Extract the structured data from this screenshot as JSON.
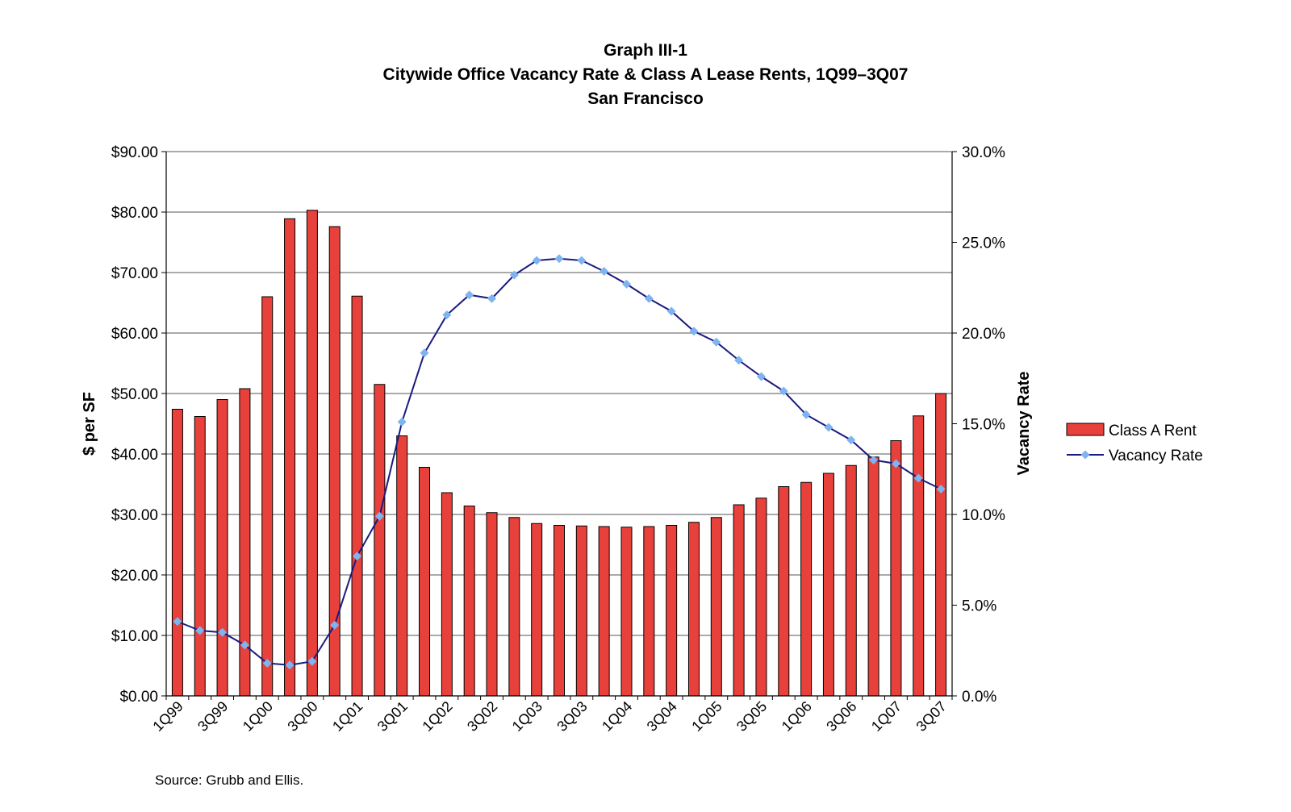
{
  "chart_data": {
    "type": "bar",
    "title": "Graph III-1",
    "subtitle": "Citywide Office Vacancy Rate & Class A Lease Rents, 1Q99–3Q07",
    "subtitle2": "San Francisco",
    "ylabel_left": "$ per SF",
    "ylabel_right": "Vacancy Rate",
    "ylim_left": [
      0,
      90
    ],
    "ylim_right": [
      0,
      30
    ],
    "yticks_left": [
      "$0.00",
      "$10.00",
      "$20.00",
      "$30.00",
      "$40.00",
      "$50.00",
      "$60.00",
      "$70.00",
      "$80.00",
      "$90.00"
    ],
    "yticks_right": [
      "0.0%",
      "5.0%",
      "10.0%",
      "15.0%",
      "20.0%",
      "25.0%",
      "30.0%"
    ],
    "grid": "horizontal",
    "legend_position": "right",
    "categories": [
      "1Q99",
      "2Q99",
      "3Q99",
      "4Q99",
      "1Q00",
      "2Q00",
      "3Q00",
      "4Q00",
      "1Q01",
      "2Q01",
      "3Q01",
      "4Q01",
      "1Q02",
      "2Q02",
      "3Q02",
      "4Q02",
      "1Q03",
      "2Q03",
      "3Q03",
      "4Q03",
      "1Q04",
      "2Q04",
      "3Q04",
      "4Q04",
      "1Q05",
      "2Q05",
      "3Q05",
      "4Q05",
      "1Q06",
      "2Q06",
      "3Q06",
      "4Q06",
      "1Q07",
      "2Q07",
      "3Q07"
    ],
    "xtick_labels": [
      "1Q99",
      "3Q99",
      "1Q00",
      "3Q00",
      "1Q01",
      "3Q01",
      "1Q02",
      "3Q02",
      "1Q03",
      "3Q03",
      "1Q04",
      "3Q04",
      "1Q05",
      "3Q05",
      "1Q06",
      "3Q06",
      "1Q07",
      "3Q07"
    ],
    "series": [
      {
        "name": "Class A Rent",
        "type": "bar",
        "axis": "left",
        "color": "#e8413c",
        "values": [
          47.4,
          46.2,
          49.0,
          50.8,
          66.0,
          78.9,
          80.3,
          77.6,
          66.1,
          51.5,
          43.0,
          37.8,
          33.6,
          31.4,
          30.3,
          29.5,
          28.5,
          28.2,
          28.1,
          28.0,
          27.9,
          28.0,
          28.2,
          28.7,
          29.5,
          31.6,
          32.7,
          34.6,
          35.3,
          36.8,
          38.1,
          39.5,
          42.2,
          46.3,
          50.0
        ]
      },
      {
        "name": "Vacancy Rate",
        "type": "line",
        "axis": "right",
        "color": "#1a1a80",
        "marker_color": "#7fb4f0",
        "values": [
          4.1,
          3.6,
          3.5,
          2.8,
          1.8,
          1.7,
          1.9,
          3.9,
          7.7,
          9.9,
          15.1,
          18.9,
          21.0,
          22.1,
          21.9,
          23.2,
          24.0,
          24.1,
          24.0,
          23.4,
          22.7,
          21.9,
          21.2,
          20.1,
          19.5,
          18.5,
          17.6,
          16.8,
          15.5,
          14.8,
          14.1,
          13.0,
          12.8,
          12.0,
          11.4
        ]
      }
    ]
  },
  "source": "Source: Grubb and Ellis."
}
